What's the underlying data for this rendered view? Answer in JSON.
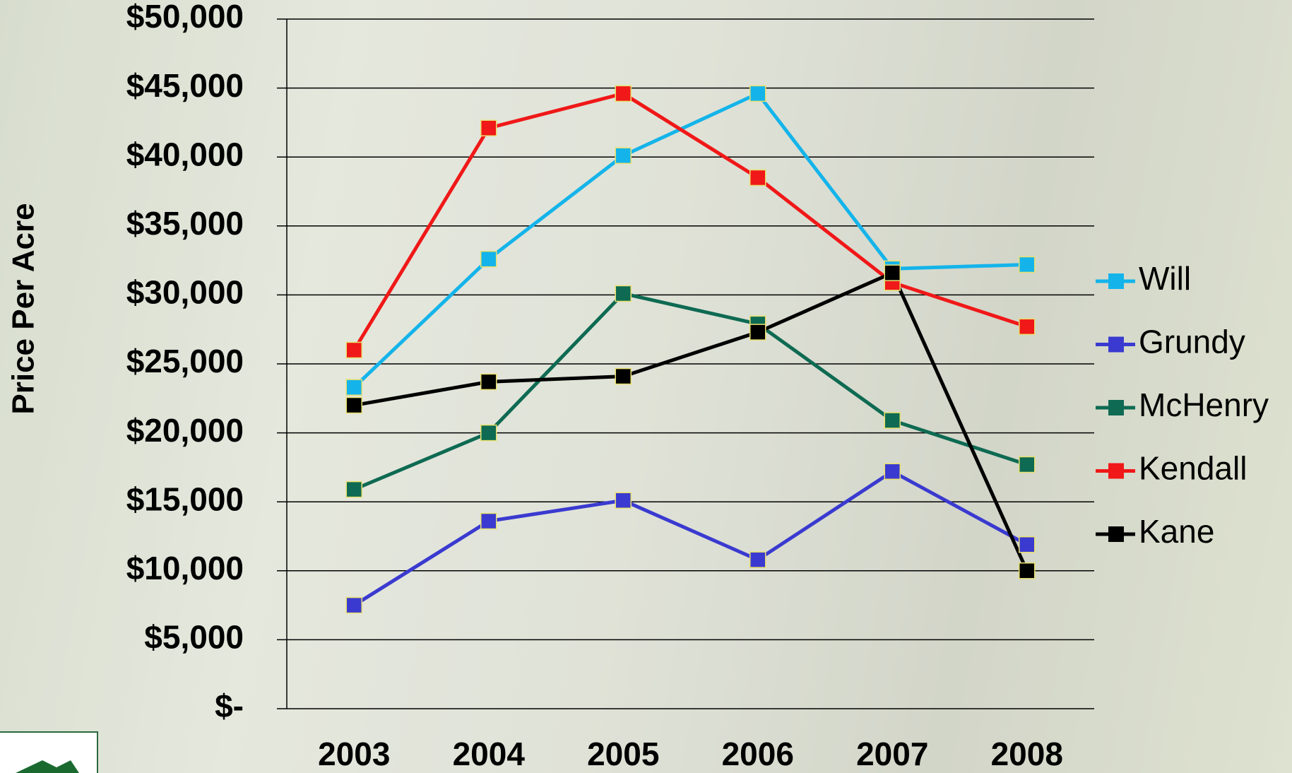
{
  "chart_data": {
    "type": "line",
    "y_label": "Price Per Acre",
    "categories": [
      "2003",
      "2004",
      "2005",
      "2006",
      "2007",
      "2008"
    ],
    "series": [
      {
        "name": "Will",
        "color": "#14b4ea",
        "values": [
          23300,
          32600,
          40100,
          44600,
          31900,
          32200
        ]
      },
      {
        "name": "Grundy",
        "color": "#3a3ad0",
        "values": [
          7500,
          13600,
          15100,
          10800,
          17200,
          11900
        ]
      },
      {
        "name": "McHenry",
        "color": "#0e6a52",
        "values": [
          15900,
          20000,
          30100,
          27900,
          20900,
          17700
        ]
      },
      {
        "name": "Kendall",
        "color": "#f01818",
        "values": [
          26000,
          42100,
          44600,
          38500,
          30900,
          27700
        ]
      },
      {
        "name": "Kane",
        "color": "#000000",
        "values": [
          22000,
          23700,
          24100,
          27300,
          31600,
          10000
        ]
      }
    ],
    "ylim": [
      0,
      50000
    ],
    "yticks": [
      {
        "value": 0,
        "label": "$-"
      },
      {
        "value": 5000,
        "label": "$5,000"
      },
      {
        "value": 10000,
        "label": "$10,000"
      },
      {
        "value": 15000,
        "label": "$15,000"
      },
      {
        "value": 20000,
        "label": "$20,000"
      },
      {
        "value": 25000,
        "label": "$25,000"
      },
      {
        "value": 30000,
        "label": "$30,000"
      },
      {
        "value": 35000,
        "label": "$35,000"
      },
      {
        "value": 40000,
        "label": "$40,000"
      },
      {
        "value": 45000,
        "label": "$45,000"
      },
      {
        "value": 50000,
        "label": "$50,000"
      }
    ],
    "grid": true,
    "legend": "right"
  }
}
